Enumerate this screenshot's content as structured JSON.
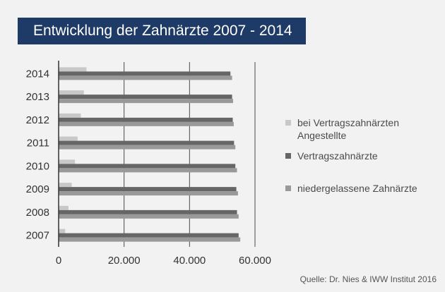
{
  "chart_data": {
    "type": "bar",
    "orientation": "horizontal",
    "title": "Entwicklung der Zahnärzte 2007 - 2014",
    "categories": [
      "2014",
      "2013",
      "2012",
      "2011",
      "2010",
      "2009",
      "2008",
      "2007"
    ],
    "series": [
      {
        "name": "bei Vertragszahnärzten Angestellte",
        "color": "#c8c8c8",
        "values": [
          8500,
          7700,
          6800,
          5800,
          5000,
          4000,
          3000,
          2000
        ]
      },
      {
        "name": "Vertragszahnärzte",
        "color": "#666666",
        "values": [
          52500,
          53000,
          53200,
          53600,
          54000,
          54300,
          54500,
          55000
        ]
      },
      {
        "name": "niedergelassene Zahnärzte",
        "color": "#999999",
        "values": [
          53000,
          53300,
          53500,
          54000,
          54500,
          54800,
          55000,
          55500
        ]
      }
    ],
    "xlim": [
      0,
      60000
    ],
    "xticks": [
      "0",
      "20.000",
      "40.000",
      "60.000"
    ],
    "xtick_values": [
      0,
      20000,
      40000,
      60000
    ],
    "grid": true,
    "legend_position": "right",
    "source": "Quelle: Dr. Nies & IWW Institut 2016"
  }
}
